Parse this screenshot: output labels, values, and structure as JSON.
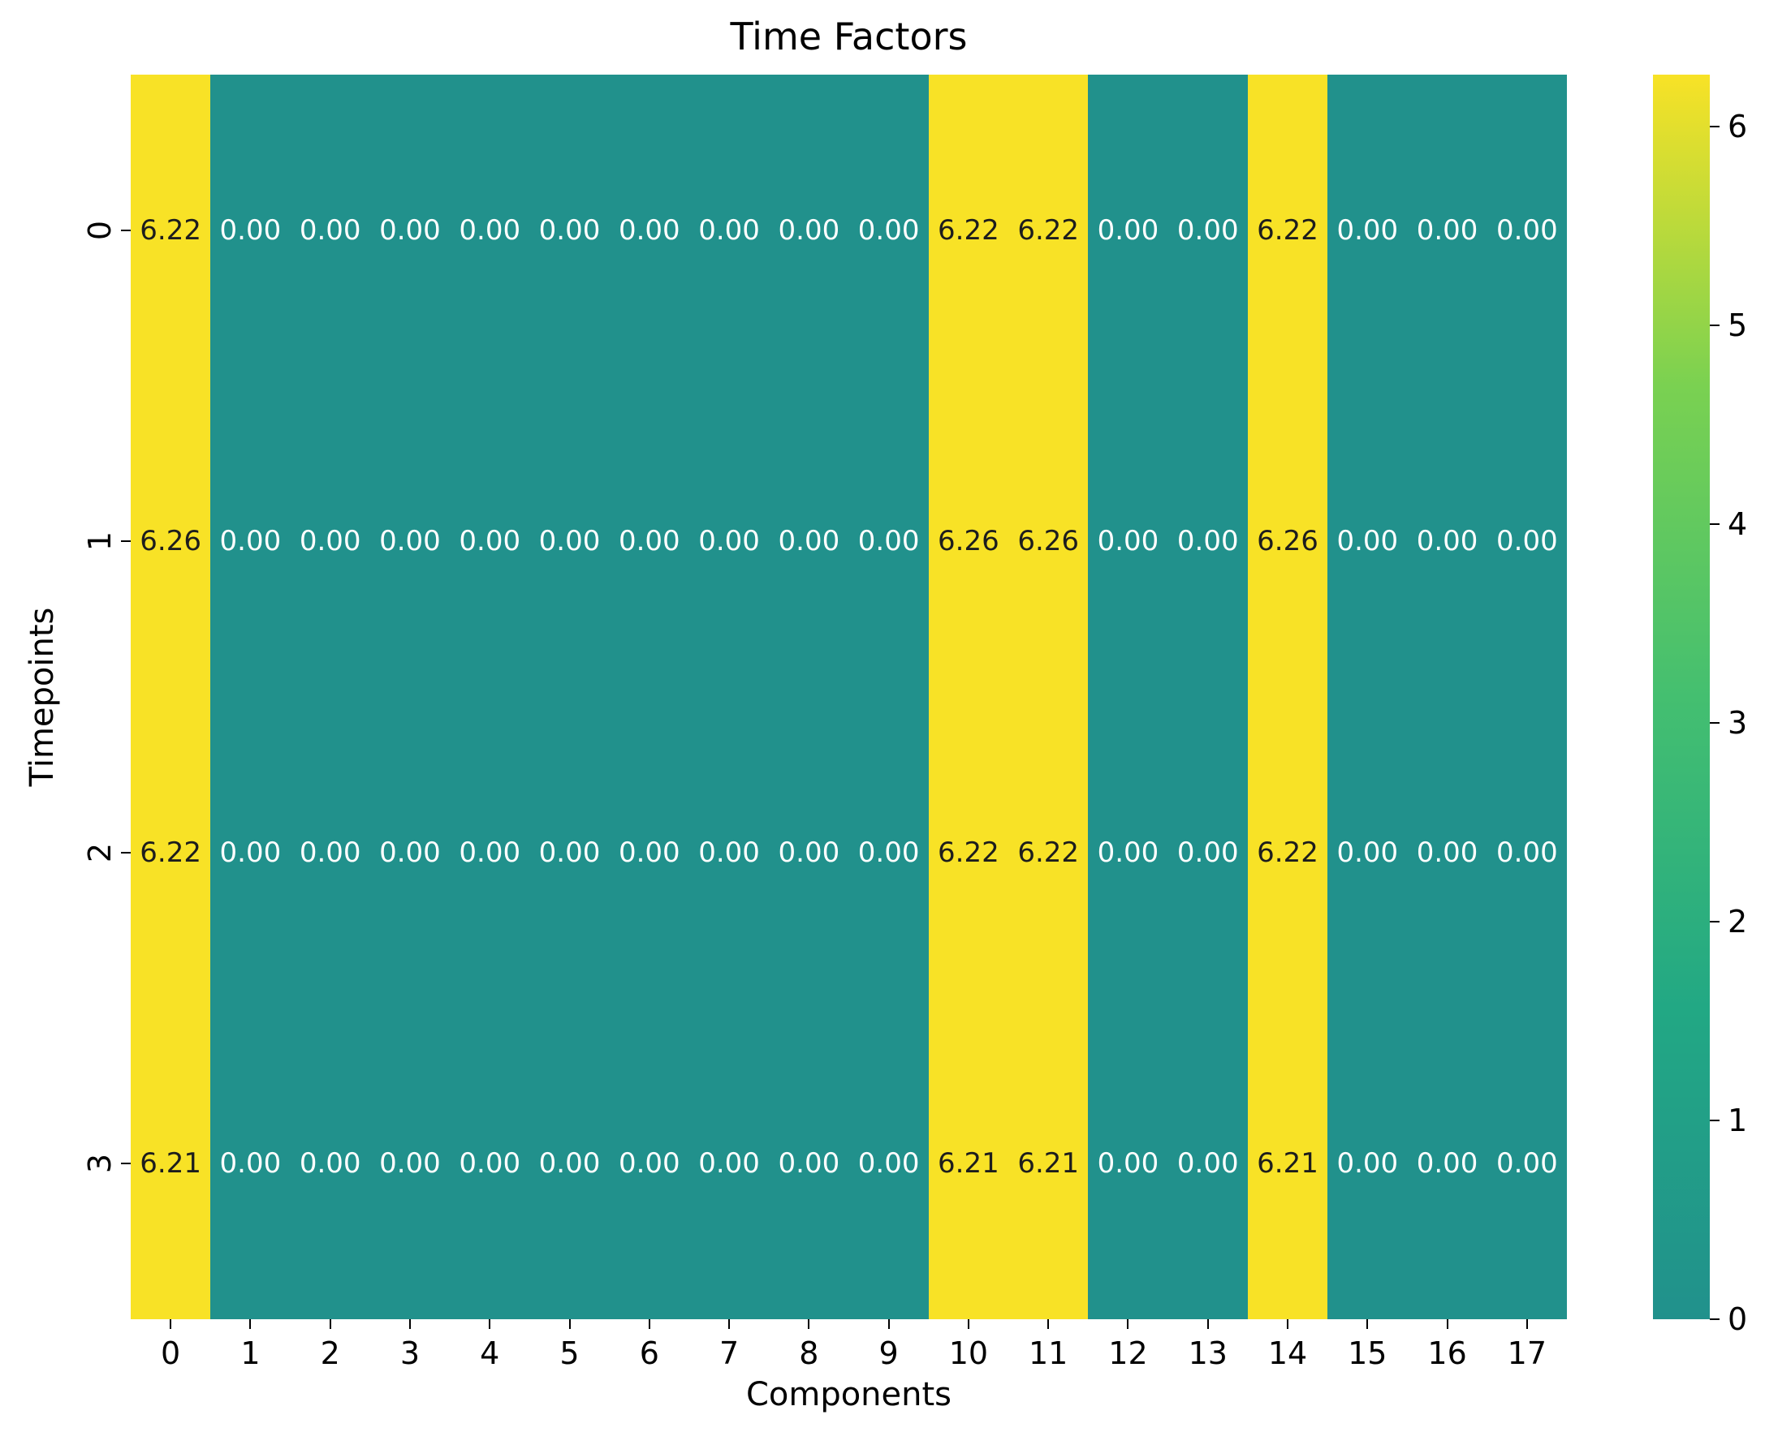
{
  "chart_data": {
    "type": "heatmap",
    "title": "Time Factors",
    "xlabel": "Components",
    "ylabel": "Timepoints",
    "x_tick_labels": [
      "0",
      "1",
      "2",
      "3",
      "4",
      "5",
      "6",
      "7",
      "8",
      "9",
      "10",
      "11",
      "12",
      "13",
      "14",
      "15",
      "16",
      "17"
    ],
    "y_tick_labels": [
      "0",
      "1",
      "2",
      "3"
    ],
    "rows": [
      [
        6.22,
        0.0,
        0.0,
        0.0,
        0.0,
        0.0,
        0.0,
        0.0,
        0.0,
        0.0,
        6.22,
        6.22,
        0.0,
        0.0,
        6.22,
        0.0,
        0.0,
        0.0
      ],
      [
        6.26,
        0.0,
        0.0,
        0.0,
        0.0,
        0.0,
        0.0,
        0.0,
        0.0,
        0.0,
        6.26,
        6.26,
        0.0,
        0.0,
        6.26,
        0.0,
        0.0,
        0.0
      ],
      [
        6.22,
        0.0,
        0.0,
        0.0,
        0.0,
        0.0,
        0.0,
        0.0,
        0.0,
        0.0,
        6.22,
        6.22,
        0.0,
        0.0,
        6.22,
        0.0,
        0.0,
        0.0
      ],
      [
        6.21,
        0.0,
        0.0,
        0.0,
        0.0,
        0.0,
        0.0,
        0.0,
        0.0,
        0.0,
        6.21,
        6.21,
        0.0,
        0.0,
        6.21,
        0.0,
        0.0,
        0.0
      ]
    ],
    "annotation_decimals": 2,
    "colorbar": {
      "vmin": 0,
      "vmax": 6.26,
      "tick_values": [
        6,
        5,
        4,
        3,
        2,
        1,
        0
      ],
      "tick_labels": [
        "6",
        "5",
        "4",
        "3",
        "2",
        "1",
        "0"
      ]
    },
    "legend_position": "right-colorbar",
    "grid": false,
    "colors": {
      "cell_low": "#21918c",
      "cell_high": "#f8e226",
      "annot_on_low": "#ffffff",
      "annot_on_high": "#1d1d1d",
      "colorbar_gradient": [
        "#21918c",
        "#22a884",
        "#44bf70",
        "#7ad151",
        "#f8e226"
      ],
      "tick_color": "#000000",
      "text_color": "#000000"
    }
  }
}
